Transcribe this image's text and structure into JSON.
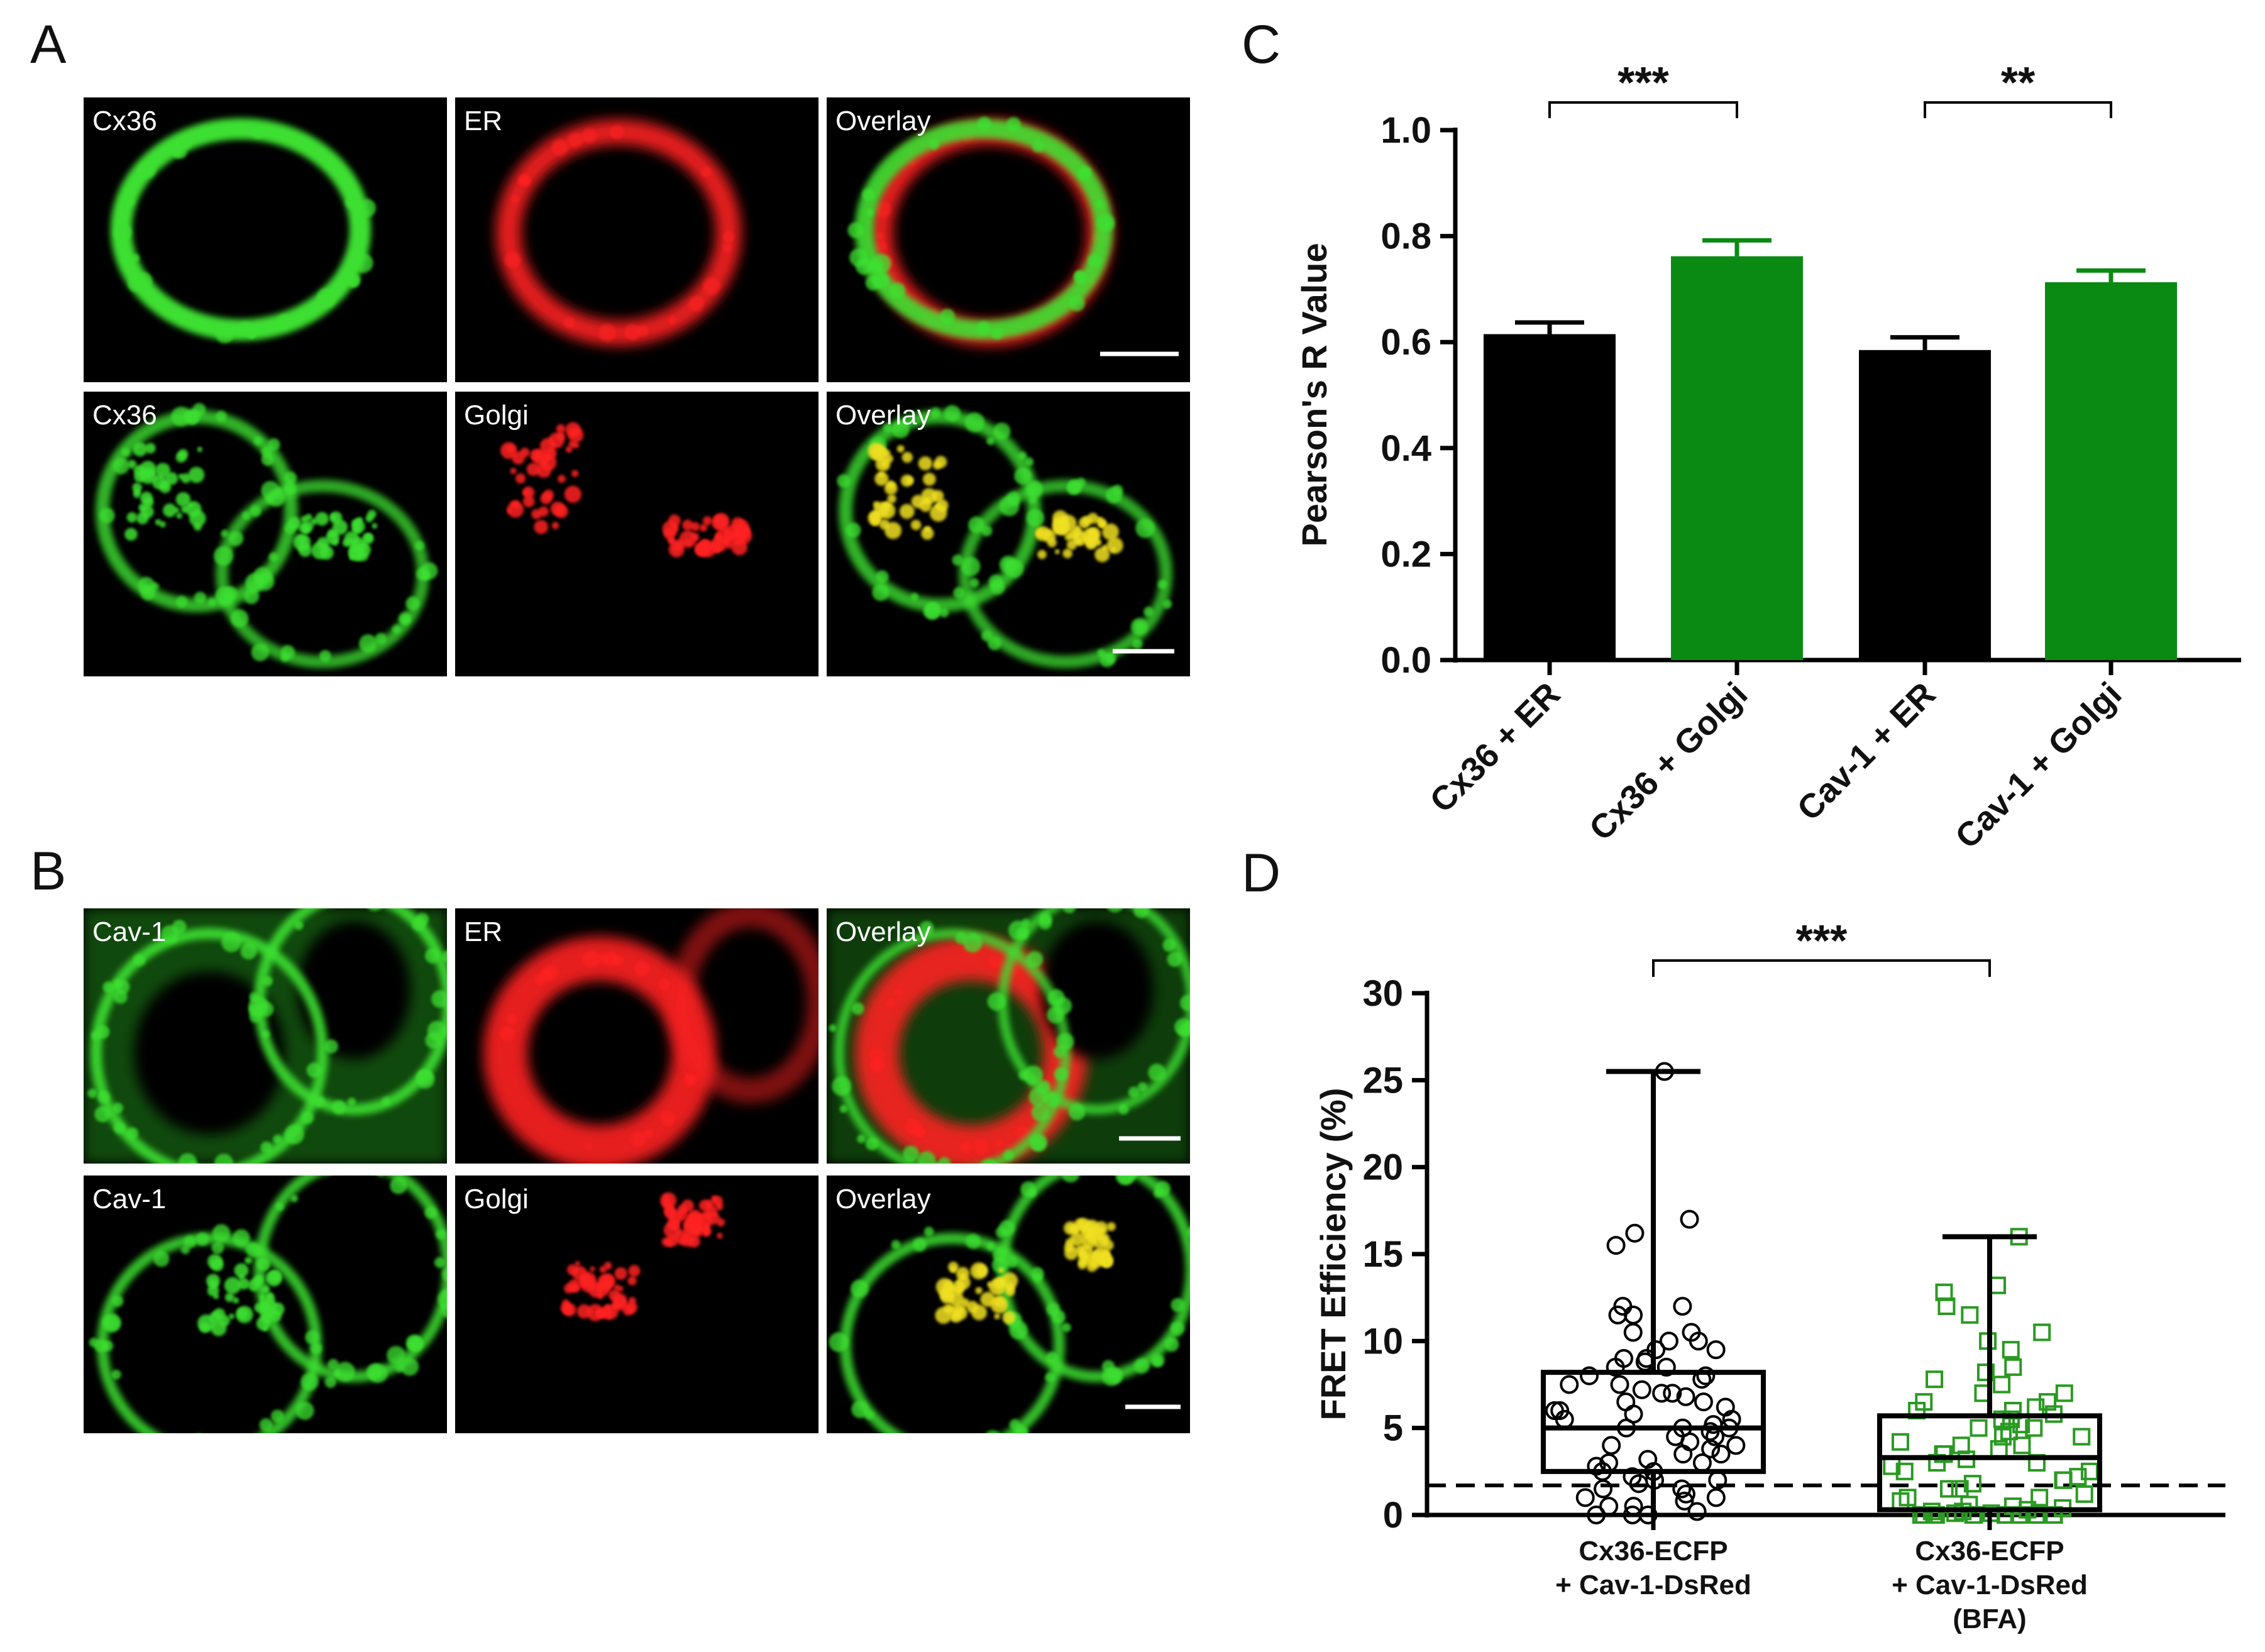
{
  "panels": {
    "A": {
      "letter": "A",
      "rows": [
        [
          "Cx36",
          "ER",
          "Overlay"
        ],
        [
          "Cx36",
          "Golgi",
          "Overlay"
        ]
      ]
    },
    "B": {
      "letter": "B",
      "rows": [
        [
          "Cav-1",
          "ER",
          "Overlay"
        ],
        [
          "Cav-1",
          "Golgi",
          "Overlay"
        ]
      ]
    },
    "C": {
      "letter": "C"
    },
    "D": {
      "letter": "D"
    }
  },
  "colors": {
    "black_bar": "#000000",
    "green_bar": "#0a8a12",
    "micro_green": "#3de030",
    "micro_red": "#ff2020",
    "micro_yellow": "#f0e020",
    "d_green_marker": "#2a9a22"
  },
  "chart_data": [
    {
      "type": "bar",
      "panel": "C",
      "categories": [
        "Cx36 + ER",
        "Cx36 + Golgi",
        "Cav-1 + ER",
        "Cav-1 + Golgi"
      ],
      "values": [
        0.615,
        0.762,
        0.585,
        0.713
      ],
      "errors": [
        0.022,
        0.03,
        0.024,
        0.022
      ],
      "bar_colors": [
        "#000000",
        "#0a8a12",
        "#000000",
        "#0a8a12"
      ],
      "ylabel": "Pearson's R Value",
      "xlabel": "",
      "ylim": [
        0,
        1.0
      ],
      "yticks": [
        "0.0",
        "0.2",
        "0.4",
        "0.6",
        "0.8",
        "1.0"
      ],
      "significance": [
        {
          "from": 0,
          "to": 1,
          "label": "***"
        },
        {
          "from": 2,
          "to": 3,
          "label": "**"
        }
      ],
      "grid": false
    },
    {
      "type": "box",
      "panel": "D",
      "categories": [
        [
          "Cx36-ECFP",
          "+ Cav-1-DsRed"
        ],
        [
          "Cx36-ECFP",
          "+ Cav-1-DsRed",
          "(BFA)"
        ]
      ],
      "ylabel": "FRET Efficiency (%)",
      "ylim": [
        0,
        30
      ],
      "yticks": [
        "0",
        "5",
        "10",
        "15",
        "20",
        "25",
        "30"
      ],
      "threshold_line": 1.7,
      "boxes": [
        {
          "min": 0,
          "q1": 2.5,
          "median": 5.0,
          "q3": 8.2,
          "max": 25.5,
          "marker": "circle",
          "color": "#000000"
        },
        {
          "min": 0,
          "q1": 0.3,
          "median": 3.3,
          "q3": 5.7,
          "max": 16.0,
          "marker": "square",
          "color": "#2a9a22"
        }
      ],
      "points": [
        [
          25.5,
          17.0,
          16.2,
          15.5,
          12.0,
          12.0,
          11.5,
          11.5,
          10.5,
          10.5,
          10.0,
          10.0,
          9.5,
          9.5,
          9.0,
          9.0,
          8.8,
          8.5,
          8.5,
          8.0,
          8.0,
          7.8,
          7.5,
          7.5,
          7.2,
          7.0,
          7.0,
          6.8,
          6.5,
          6.5,
          6.2,
          6.0,
          6.0,
          5.8,
          5.5,
          5.5,
          5.2,
          5.0,
          5.0,
          5.0,
          4.8,
          4.5,
          4.5,
          4.2,
          4.0,
          4.0,
          3.8,
          3.5,
          3.5,
          3.2,
          3.0,
          3.0,
          2.8,
          2.5,
          2.5,
          2.2,
          2.0,
          2.0,
          1.8,
          1.5,
          1.5,
          1.2,
          1.0,
          1.0,
          0.8,
          0.5,
          0.5,
          0.2,
          0.0,
          0.0,
          0.0
        ],
        [
          16.0,
          13.2,
          12.8,
          12.0,
          11.5,
          10.5,
          10.0,
          9.5,
          8.5,
          8.2,
          7.8,
          7.5,
          7.0,
          7.0,
          6.5,
          6.5,
          6.2,
          6.0,
          6.0,
          5.8,
          5.5,
          5.5,
          5.2,
          5.0,
          5.0,
          4.8,
          4.5,
          4.5,
          4.2,
          4.0,
          4.0,
          3.8,
          3.5,
          3.5,
          3.2,
          3.0,
          3.0,
          2.8,
          2.5,
          2.5,
          2.2,
          2.0,
          2.0,
          1.8,
          1.5,
          1.5,
          1.2,
          1.0,
          1.0,
          0.8,
          0.6,
          0.5,
          0.4,
          0.3,
          0.2,
          0.2,
          0.1,
          0.1,
          0.0,
          0.0,
          0.0,
          0.0,
          0.0,
          0.0,
          0.0,
          0.0,
          0.0,
          0.0,
          0.0,
          0.0
        ]
      ],
      "significance": [
        {
          "from": 0,
          "to": 1,
          "label": "***"
        }
      ]
    }
  ]
}
